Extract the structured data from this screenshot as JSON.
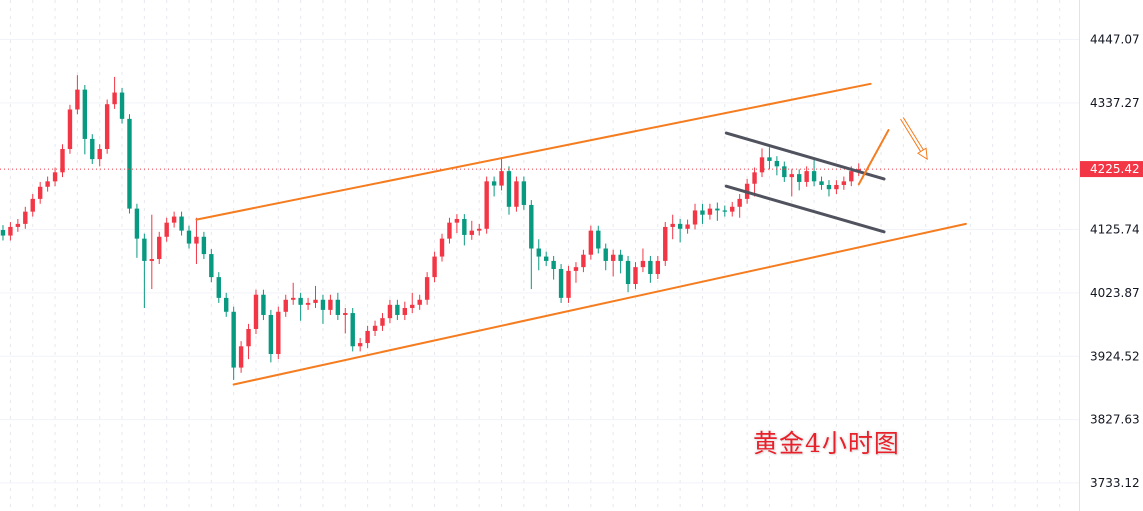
{
  "chart_data": {
    "type": "candlestick",
    "title": "",
    "caption": "黄金4小时图",
    "y_scale": "log",
    "ylim": [
      3692,
      4517
    ],
    "xlim": [
      -0.4,
      144.6
    ],
    "y_ticks": [
      "4447.07",
      "4337.27",
      "4125.74",
      "4023.87",
      "3924.52",
      "3827.63",
      "3733.12"
    ],
    "last_price": 4225.42,
    "last_price_label": "4225.42",
    "grid": true,
    "colors": {
      "up": "#f23645",
      "down": "#089981",
      "channel": "#f57c1f",
      "flag": "#50535e",
      "last_price": "#f23645",
      "caption": "#e8202a",
      "grid": "#f0f3fa"
    },
    "candles": [
      [
        4125,
        4133,
        4108,
        4116
      ],
      [
        4116,
        4138,
        4108,
        4130
      ],
      [
        4130,
        4143,
        4122,
        4135
      ],
      [
        4135,
        4163,
        4127,
        4155
      ],
      [
        4155,
        4184,
        4147,
        4176
      ],
      [
        4176,
        4204,
        4168,
        4196
      ],
      [
        4196,
        4213,
        4188,
        4205
      ],
      [
        4205,
        4228,
        4197,
        4220
      ],
      [
        4220,
        4267,
        4212,
        4259
      ],
      [
        4259,
        4334,
        4251,
        4326
      ],
      [
        4326,
        4385,
        4318,
        4360
      ],
      [
        4360,
        4368,
        4250,
        4276
      ],
      [
        4276,
        4284,
        4234,
        4242
      ],
      [
        4242,
        4267,
        4230,
        4259
      ],
      [
        4259,
        4343,
        4251,
        4335
      ],
      [
        4335,
        4382,
        4327,
        4355
      ],
      [
        4355,
        4363,
        4302,
        4310
      ],
      [
        4310,
        4318,
        4152,
        4160
      ],
      [
        4160,
        4168,
        4080,
        4111
      ],
      [
        4111,
        4119,
        4000,
        4075
      ],
      [
        4075,
        4150,
        4030,
        4078
      ],
      [
        4078,
        4122,
        4070,
        4114
      ],
      [
        4114,
        4145,
        4106,
        4137
      ],
      [
        4137,
        4155,
        4129,
        4147
      ],
      [
        4147,
        4155,
        4116,
        4124
      ],
      [
        4124,
        4132,
        4095,
        4103
      ],
      [
        4103,
        4145,
        4070,
        4114
      ],
      [
        4114,
        4122,
        4078,
        4086
      ],
      [
        4086,
        4094,
        4041,
        4049
      ],
      [
        4049,
        4057,
        4008,
        4016
      ],
      [
        4016,
        4024,
        3986,
        3994
      ],
      [
        3994,
        4002,
        3888,
        3907
      ],
      [
        3907,
        3948,
        3899,
        3940
      ],
      [
        3940,
        3975,
        3920,
        3967
      ],
      [
        3967,
        4029,
        3959,
        4021
      ],
      [
        4021,
        4029,
        3981,
        3989
      ],
      [
        3989,
        3997,
        3915,
        3928
      ],
      [
        3928,
        4002,
        3920,
        3994
      ],
      [
        3994,
        4021,
        3986,
        4013
      ],
      [
        4013,
        4040,
        4005,
        4016
      ],
      [
        4016,
        4024,
        3980,
        4005
      ],
      [
        4005,
        4016,
        3997,
        4008
      ],
      [
        4008,
        4035,
        4000,
        4013
      ],
      [
        4013,
        4021,
        3975,
        3997
      ],
      [
        3997,
        4021,
        3989,
        4013
      ],
      [
        4013,
        4024,
        3981,
        3989
      ],
      [
        3989,
        4000,
        3960,
        3992
      ],
      [
        3992,
        4000,
        3932,
        3940
      ],
      [
        3940,
        3953,
        3932,
        3945
      ],
      [
        3945,
        3972,
        3937,
        3964
      ],
      [
        3964,
        3980,
        3956,
        3972
      ],
      [
        3972,
        3992,
        3964,
        3984
      ],
      [
        3984,
        4013,
        3976,
        4005
      ],
      [
        4005,
        4013,
        3981,
        3989
      ],
      [
        3989,
        4010,
        3981,
        4000
      ],
      [
        4000,
        4024,
        3992,
        4005
      ],
      [
        4005,
        4021,
        3997,
        4013
      ],
      [
        4013,
        4057,
        4005,
        4049
      ],
      [
        4049,
        4090,
        4041,
        4082
      ],
      [
        4082,
        4119,
        4074,
        4111
      ],
      [
        4111,
        4145,
        4103,
        4137
      ],
      [
        4137,
        4151,
        4120,
        4143
      ],
      [
        4143,
        4151,
        4100,
        4117
      ],
      [
        4117,
        4140,
        4109,
        4124
      ],
      [
        4124,
        4135,
        4116,
        4127
      ],
      [
        4127,
        4213,
        4119,
        4205
      ],
      [
        4205,
        4213,
        4180,
        4198
      ],
      [
        4198,
        4245,
        4190,
        4222
      ],
      [
        4222,
        4230,
        4150,
        4163
      ],
      [
        4163,
        4213,
        4155,
        4205
      ],
      [
        4205,
        4213,
        4158,
        4166
      ],
      [
        4166,
        4174,
        4030,
        4095
      ],
      [
        4095,
        4110,
        4060,
        4082
      ],
      [
        4082,
        4090,
        4067,
        4075
      ],
      [
        4075,
        4083,
        4045,
        4062
      ],
      [
        4062,
        4070,
        4008,
        4016
      ],
      [
        4016,
        4067,
        4008,
        4059
      ],
      [
        4059,
        4073,
        4040,
        4065
      ],
      [
        4065,
        4093,
        4057,
        4085
      ],
      [
        4085,
        4132,
        4077,
        4124
      ],
      [
        4124,
        4132,
        4087,
        4095
      ],
      [
        4095,
        4103,
        4060,
        4075
      ],
      [
        4075,
        4093,
        4050,
        4085
      ],
      [
        4085,
        4093,
        4055,
        4075
      ],
      [
        4075,
        4083,
        4025,
        4038
      ],
      [
        4038,
        4073,
        4030,
        4065
      ],
      [
        4065,
        4095,
        4057,
        4075
      ],
      [
        4075,
        4083,
        4040,
        4054
      ],
      [
        4054,
        4083,
        4046,
        4075
      ],
      [
        4075,
        4138,
        4067,
        4130
      ],
      [
        4130,
        4150,
        4110,
        4135
      ],
      [
        4135,
        4143,
        4105,
        4127
      ],
      [
        4127,
        4142,
        4119,
        4134
      ],
      [
        4134,
        4168,
        4126,
        4157
      ],
      [
        4157,
        4168,
        4135,
        4150
      ],
      [
        4150,
        4168,
        4142,
        4160
      ],
      [
        4160,
        4170,
        4140,
        4157
      ],
      [
        4157,
        4165,
        4147,
        4155
      ],
      [
        4155,
        4171,
        4147,
        4163
      ],
      [
        4163,
        4184,
        4145,
        4176
      ],
      [
        4176,
        4209,
        4168,
        4201
      ],
      [
        4201,
        4228,
        4180,
        4220
      ],
      [
        4220,
        4260,
        4212,
        4245
      ],
      [
        4245,
        4262,
        4225,
        4239
      ],
      [
        4239,
        4247,
        4215,
        4230
      ],
      [
        4230,
        4238,
        4204,
        4212
      ],
      [
        4212,
        4225,
        4180,
        4217
      ],
      [
        4217,
        4225,
        4190,
        4204
      ],
      [
        4204,
        4230,
        4196,
        4222
      ],
      [
        4222,
        4245,
        4197,
        4205
      ],
      [
        4205,
        4213,
        4191,
        4199
      ],
      [
        4199,
        4207,
        4180,
        4192
      ],
      [
        4192,
        4207,
        4184,
        4199
      ],
      [
        4199,
        4213,
        4191,
        4205
      ],
      [
        4205,
        4230,
        4197,
        4222
      ],
      [
        4222,
        4235,
        4214,
        4225.42
      ]
    ],
    "drawings": [
      {
        "kind": "trendline",
        "name": "channel-upper-line",
        "color": "channel",
        "points": [
          [
            26.0,
            4142
          ],
          [
            116.6,
            4370
          ]
        ]
      },
      {
        "kind": "trendline",
        "name": "channel-lower-line",
        "color": "channel",
        "points": [
          [
            31.0,
            3881
          ],
          [
            129.4,
            4135
          ]
        ]
      },
      {
        "kind": "trendline",
        "name": "flag-upper-line",
        "color": "flag",
        "points": [
          [
            97.2,
            4286
          ],
          [
            118.4,
            4209
          ]
        ]
      },
      {
        "kind": "trendline",
        "name": "flag-lower-line",
        "color": "flag",
        "points": [
          [
            97.2,
            4197
          ],
          [
            118.4,
            4122
          ]
        ]
      },
      {
        "kind": "line",
        "name": "breakout-up-line",
        "color": "channel",
        "points": [
          [
            115.0,
            4200
          ],
          [
            119.0,
            4291
          ]
        ]
      },
      {
        "kind": "arrow-hollow",
        "name": "down-arrow",
        "color": "channel",
        "points": [
          [
            120.8,
            4311
          ],
          [
            124.2,
            4242
          ]
        ]
      }
    ]
  }
}
